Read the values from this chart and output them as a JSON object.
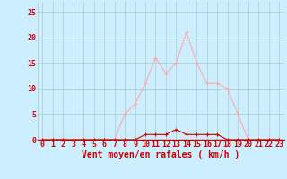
{
  "x": [
    0,
    1,
    2,
    3,
    4,
    5,
    6,
    7,
    8,
    9,
    10,
    11,
    12,
    13,
    14,
    15,
    16,
    17,
    18,
    19,
    20,
    21,
    22,
    23
  ],
  "y_rafales": [
    0,
    0,
    0,
    0,
    0,
    0,
    0,
    0,
    5,
    7,
    11,
    16,
    13,
    15,
    21,
    15,
    11,
    11,
    10,
    5,
    0,
    0,
    0,
    0
  ],
  "y_moyen": [
    0,
    0,
    0,
    0,
    0,
    0,
    0,
    0,
    0,
    0,
    1,
    1,
    1,
    2,
    1,
    1,
    1,
    1,
    0,
    0,
    0,
    0,
    0,
    0
  ],
  "line_color_rafales": "#ffaaaa",
  "line_color_moyen": "#cc0000",
  "bg_color": "#cceeff",
  "grid_color": "#aacccc",
  "xlabel": "Vent moyen/en rafales ( km/h )",
  "xlabel_color": "#cc0000",
  "xlabel_fontsize": 7,
  "tick_color": "#cc0000",
  "tick_fontsize": 6,
  "yticks": [
    0,
    5,
    10,
    15,
    20,
    25
  ],
  "ylim": [
    0,
    27
  ],
  "xlim": [
    -0.5,
    23.5
  ],
  "figsize": [
    3.2,
    2.0
  ],
  "dpi": 100
}
